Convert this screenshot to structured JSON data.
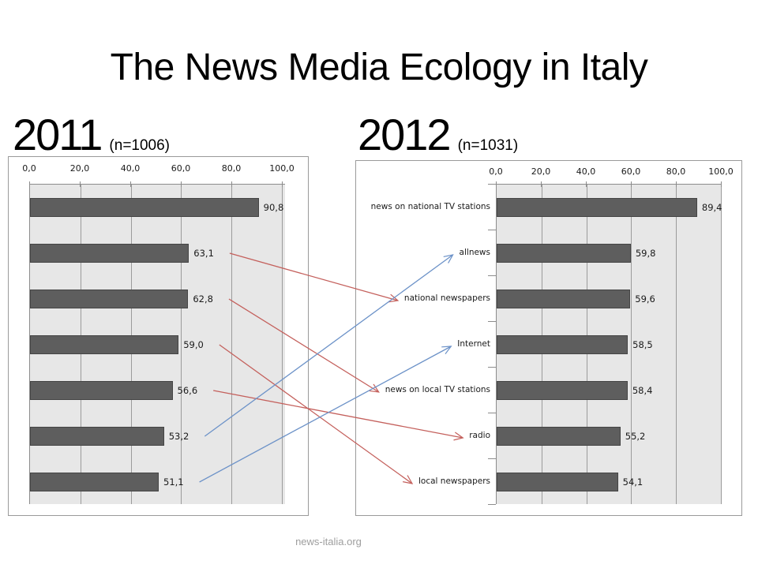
{
  "slide": {
    "title": "The News Media Ecology in Italy",
    "footer": "news-italia.org"
  },
  "chart_data": [
    {
      "type": "bar",
      "orientation": "horizontal",
      "year": "2011",
      "sample": "(n=1006)",
      "axis": {
        "tick_labels": [
          "0,0",
          "20,0",
          "40,0",
          "60,0",
          "80,0",
          "100,0"
        ],
        "tick_values": [
          0,
          20,
          40,
          60,
          80,
          100
        ],
        "max": 101.25,
        "grid": true
      },
      "categories": [
        "",
        "",
        "",
        "",
        "",
        "",
        ""
      ],
      "values": [
        90.8,
        63.1,
        62.8,
        59.0,
        56.6,
        53.2,
        51.1
      ],
      "value_labels": [
        "90,8",
        "63,1",
        "62,8",
        "59,0",
        "56,6",
        "53,2",
        "51,1"
      ],
      "show_category_labels": false
    },
    {
      "type": "bar",
      "orientation": "horizontal",
      "year": "2012",
      "sample": "(n=1031)",
      "axis": {
        "tick_labels": [
          "0,0",
          "20,0",
          "40,0",
          "60,0",
          "80,0",
          "100,0"
        ],
        "tick_values": [
          0,
          20,
          40,
          60,
          80,
          100
        ],
        "max": 100.35,
        "grid": true
      },
      "categories": [
        "news on national TV stations",
        "allnews",
        "national newspapers",
        "Internet",
        "news on local TV stations",
        "radio",
        "local newspapers"
      ],
      "values": [
        89.4,
        59.8,
        59.6,
        58.5,
        58.4,
        55.2,
        54.1
      ],
      "value_labels": [
        "89,4",
        "59,8",
        "59,6",
        "58,5",
        "58,4",
        "55,2",
        "54,1"
      ],
      "show_category_labels": true
    }
  ],
  "arrows": [
    {
      "from_row": 1,
      "to_row": 2,
      "color": "red"
    },
    {
      "from_row": 2,
      "to_row": 4,
      "color": "red"
    },
    {
      "from_row": 3,
      "to_row": 6,
      "color": "red"
    },
    {
      "from_row": 4,
      "to_row": 5,
      "color": "red"
    },
    {
      "from_row": 5,
      "to_row": 1,
      "color": "blue"
    },
    {
      "from_row": 6,
      "to_row": 3,
      "color": "blue"
    }
  ],
  "colors": {
    "bar": "#5e5e5e",
    "bar_border": "#454545",
    "plot_background": "#e7e7e7",
    "gridline": "#9b9b9b",
    "frame_border": "#9a9a9a",
    "arrow_red": "#c4605c",
    "arrow_blue": "#6c92c8",
    "footer_text": "#9e9e9e"
  }
}
